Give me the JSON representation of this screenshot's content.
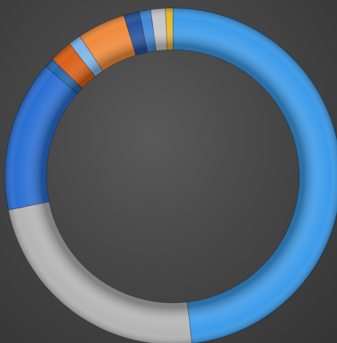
{
  "chart_data": {
    "type": "pie",
    "variant": "doughnut",
    "title": "",
    "legend": "none",
    "labels_shown": false,
    "start_angle_deg": 0,
    "direction": "clockwise",
    "values": [
      48.0,
      23.5,
      14.5,
      0.9,
      2.2,
      1.2,
      4.6,
      1.5,
      1.1,
      1.4,
      0.7
    ],
    "colors": [
      "#3d9be9",
      "#b4b4b4",
      "#2a6fd3",
      "#2666a8",
      "#d95f16",
      "#7fb6e8",
      "#f08a3c",
      "#26529c",
      "#3f89d6",
      "#c6c6c6",
      "#e7b62b"
    ]
  }
}
